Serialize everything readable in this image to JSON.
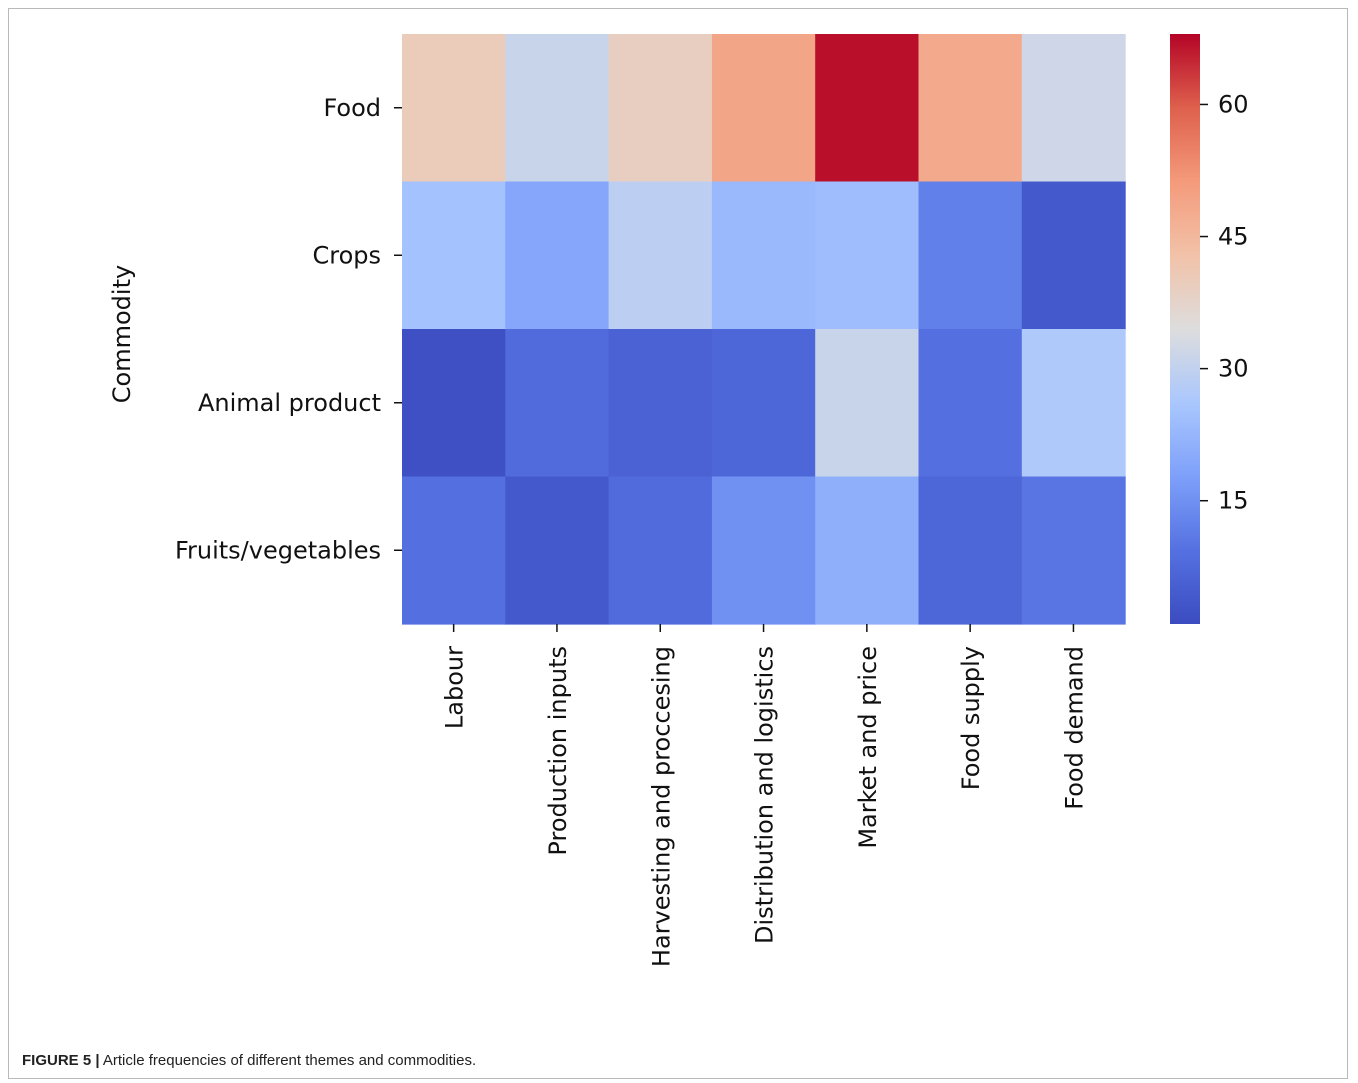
{
  "figure": {
    "label": "FIGURE 5 |",
    "caption": "Article frequencies of different themes and commodities."
  },
  "chart_data": {
    "type": "heatmap",
    "ylabel": "Commodity",
    "xlabel": "",
    "x_categories": [
      "Labour",
      "Production inputs",
      "Harvesting and proccesing",
      "Distribution and logistics",
      "Market and price",
      "Food supply",
      "Food demand"
    ],
    "y_categories": [
      "Food",
      "Crops",
      "Animal product",
      "Fruits/vegetables"
    ],
    "values": [
      [
        40,
        31,
        39,
        49,
        67,
        48,
        32
      ],
      [
        25,
        19,
        29,
        23,
        24,
        12,
        4
      ],
      [
        2,
        8,
        6,
        7,
        31,
        9,
        27
      ],
      [
        9,
        4,
        8,
        15,
        21,
        7,
        10
      ]
    ],
    "colorbar": {
      "colormap": "coolwarm",
      "vmin": 1,
      "vmax": 68,
      "ticks": [
        15,
        30,
        45,
        60
      ],
      "tick_labels": [
        "15",
        "30",
        "45",
        "60"
      ]
    }
  }
}
